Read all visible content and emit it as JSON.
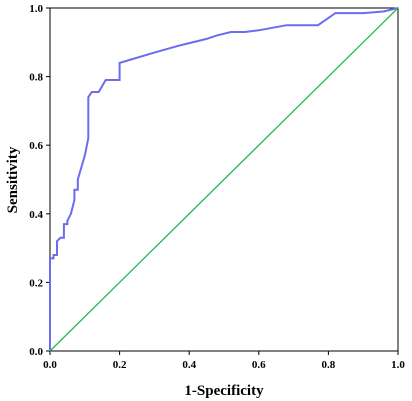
{
  "chart_data": {
    "type": "line",
    "title": "",
    "xlabel": "1-Specificity",
    "ylabel": "Sensitivity",
    "xlim": [
      0,
      1
    ],
    "ylim": [
      0,
      1
    ],
    "xticks": [
      "0.0",
      "0.2",
      "0.4",
      "0.6",
      "0.8",
      "1.0"
    ],
    "yticks": [
      "0.0",
      "0.2",
      "0.4",
      "0.6",
      "0.8",
      "1.0"
    ],
    "grid": false,
    "series": [
      {
        "color": "#6b6cf0",
        "x": [
          0,
          0,
          0.01,
          0.01,
          0.02,
          0.02,
          0.03,
          0.04,
          0.04,
          0.05,
          0.05,
          0.06,
          0.07,
          0.07,
          0.08,
          0.08,
          0.1,
          0.11,
          0.11,
          0.12,
          0.14,
          0.16,
          0.16,
          0.19,
          0.2,
          0.2,
          0.3,
          0.37,
          0.39,
          0.45,
          0.48,
          0.52,
          0.56,
          0.6,
          0.68,
          0.77,
          0.82,
          0.9,
          0.96,
          1.0
        ],
        "y": [
          0,
          0.27,
          0.27,
          0.28,
          0.28,
          0.32,
          0.33,
          0.33,
          0.37,
          0.37,
          0.38,
          0.4,
          0.44,
          0.47,
          0.47,
          0.5,
          0.57,
          0.62,
          0.74,
          0.755,
          0.755,
          0.79,
          0.79,
          0.79,
          0.79,
          0.84,
          0.87,
          0.89,
          0.895,
          0.91,
          0.92,
          0.93,
          0.93,
          0.935,
          0.95,
          0.95,
          0.985,
          0.985,
          0.99,
          1.0
        ]
      },
      {
        "color": "#22b855",
        "x": [
          0,
          1
        ],
        "y": [
          0,
          1
        ]
      }
    ]
  }
}
